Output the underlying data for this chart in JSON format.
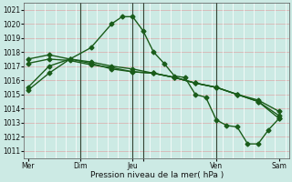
{
  "xlabel": "Pression niveau de la mer( hPa )",
  "ylim": [
    1010.5,
    1021.5
  ],
  "yticks": [
    1011,
    1012,
    1013,
    1014,
    1015,
    1016,
    1017,
    1018,
    1019,
    1020,
    1021
  ],
  "bg_color": "#cceae4",
  "line_color": "#1a5c1a",
  "grid_color_h": "#ddaaaa",
  "grid_color_v": "#ffffff",
  "series1_x": [
    0,
    1,
    2,
    3,
    4,
    4.5,
    5,
    5.5,
    6,
    6.5,
    7,
    7.5,
    8,
    8.5,
    9,
    9.5,
    10,
    10.5,
    11,
    11.5,
    12
  ],
  "series1_y": [
    1015.3,
    1016.5,
    1017.5,
    1018.3,
    1020.0,
    1020.5,
    1020.5,
    1019.5,
    1018.0,
    1017.2,
    1016.3,
    1016.2,
    1015.0,
    1014.8,
    1013.2,
    1012.8,
    1012.7,
    1011.5,
    1011.5,
    1012.5,
    1013.3
  ],
  "series2_x": [
    0,
    1,
    2,
    3,
    4,
    5,
    6,
    7,
    8,
    9,
    10,
    11,
    12
  ],
  "series2_y": [
    1017.5,
    1017.8,
    1017.5,
    1017.3,
    1017.0,
    1016.8,
    1016.5,
    1016.2,
    1015.8,
    1015.5,
    1015.0,
    1014.5,
    1013.5
  ],
  "series3_x": [
    0,
    1,
    2,
    3,
    4,
    5,
    6,
    7,
    8,
    9,
    10,
    11,
    12
  ],
  "series3_y": [
    1017.2,
    1017.5,
    1017.4,
    1017.1,
    1016.9,
    1016.6,
    1016.5,
    1016.2,
    1015.8,
    1015.5,
    1015.0,
    1014.6,
    1013.8
  ],
  "series4_x": [
    0,
    1,
    2,
    3,
    4,
    5,
    6,
    7,
    8,
    9,
    10,
    11,
    12
  ],
  "series4_y": [
    1015.5,
    1017.0,
    1017.5,
    1017.2,
    1016.8,
    1016.6,
    1016.5,
    1016.2,
    1015.8,
    1015.5,
    1015.0,
    1014.5,
    1013.3
  ],
  "vline_positions": [
    2.5,
    5.0,
    5.5,
    9.0
  ],
  "xtick_positions": [
    0,
    2.5,
    5.0,
    5.5,
    9.0,
    12.0
  ],
  "xtick_labels": [
    "Mer",
    "Dim",
    "Jeu",
    "",
    "Ven",
    "Sam"
  ],
  "xlim": [
    -0.2,
    12.5
  ],
  "marker": "D",
  "markersize": 2.5,
  "linewidth": 1.0
}
